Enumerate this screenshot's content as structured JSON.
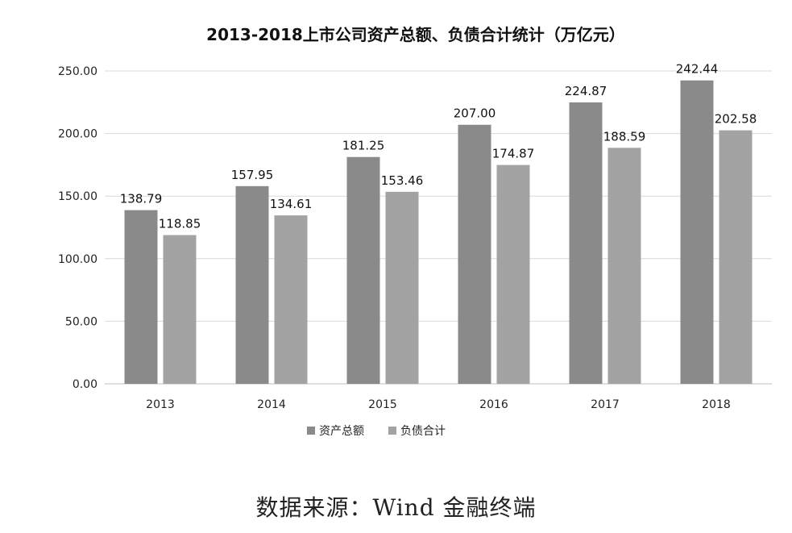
{
  "chart_data": {
    "type": "bar",
    "title": "2013-2018上市公司资产总额、负债合计统计（万亿元）",
    "categories": [
      "2013",
      "2014",
      "2015",
      "2016",
      "2017",
      "2018"
    ],
    "series": [
      {
        "name": "资产总额",
        "values": [
          138.79,
          157.95,
          181.25,
          207.0,
          224.87,
          242.44
        ],
        "color": "#8a8a8a"
      },
      {
        "name": "负债合计",
        "values": [
          118.85,
          134.61,
          153.46,
          174.87,
          188.59,
          202.58
        ],
        "color": "#a3a3a3"
      }
    ],
    "xlabel": "",
    "ylabel": "",
    "ylim": [
      0,
      250
    ],
    "yticks": [
      0,
      50,
      100,
      150,
      200,
      250
    ],
    "ytick_labels": [
      "0.00",
      "50.00",
      "100.00",
      "150.00",
      "200.00",
      "250.00"
    ],
    "data_label_decimals": 2,
    "grid": true,
    "legend_position": "bottom-left"
  },
  "source": "数据来源：Wind 金融终端"
}
